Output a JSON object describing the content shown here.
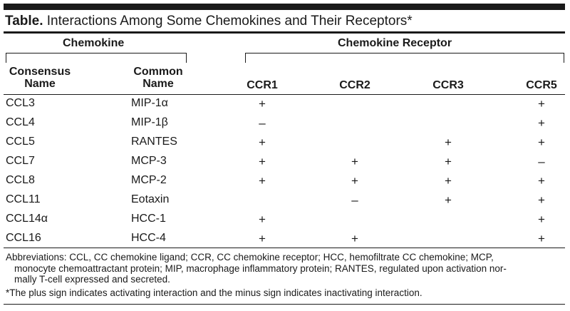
{
  "title": {
    "bold": "Table.",
    "text": " Interactions Among Some Chemokines and Their Receptors*"
  },
  "headers": {
    "chemokine_group": "Chemokine",
    "receptor_group": "Chemokine Receptor",
    "consensus_line1": "Consensus",
    "consensus_line2": "Name",
    "common_line1": "Common",
    "common_line2": "Name",
    "receptors": [
      "CCR1",
      "CCR2",
      "CCR3",
      "CCR5"
    ]
  },
  "rows": [
    {
      "consensus": "CCL3",
      "common": "MIP-1α",
      "ccr1": "+",
      "ccr2": "",
      "ccr3": "",
      "ccr5": "+"
    },
    {
      "consensus": "CCL4",
      "common": "MIP-1β",
      "ccr1": "–",
      "ccr2": "",
      "ccr3": "",
      "ccr5": "+"
    },
    {
      "consensus": "CCL5",
      "common": "RANTES",
      "ccr1": "+",
      "ccr2": "",
      "ccr3": "+",
      "ccr5": "+"
    },
    {
      "consensus": "CCL7",
      "common": "MCP-3",
      "ccr1": "+",
      "ccr2": "+",
      "ccr3": "+",
      "ccr5": "–"
    },
    {
      "consensus": "CCL8",
      "common": "MCP-2",
      "ccr1": "+",
      "ccr2": "+",
      "ccr3": "+",
      "ccr5": "+"
    },
    {
      "consensus": "CCL11",
      "common": "Eotaxin",
      "ccr1": "",
      "ccr2": "–",
      "ccr3": "+",
      "ccr5": "+"
    },
    {
      "consensus": "CCL14α",
      "common": "HCC-1",
      "ccr1": "+",
      "ccr2": "",
      "ccr3": "",
      "ccr5": "+"
    },
    {
      "consensus": "CCL16",
      "common": "HCC-4",
      "ccr1": "+",
      "ccr2": "+",
      "ccr3": "",
      "ccr5": "+"
    }
  ],
  "footnotes": {
    "abbrev_line1": "Abbreviations: CCL, CC chemokine ligand; CCR, CC chemokine receptor; HCC, hemofiltrate CC chemokine; MCP,",
    "abbrev_line2": "monocyte chemoattractant protein; MIP, macrophage inflammatory protein; RANTES, regulated upon activation nor-",
    "abbrev_line3": "mally T-cell expressed and secreted.",
    "sign_note": "*The plus sign indicates activating interaction and the minus sign indicates inactivating interaction."
  }
}
